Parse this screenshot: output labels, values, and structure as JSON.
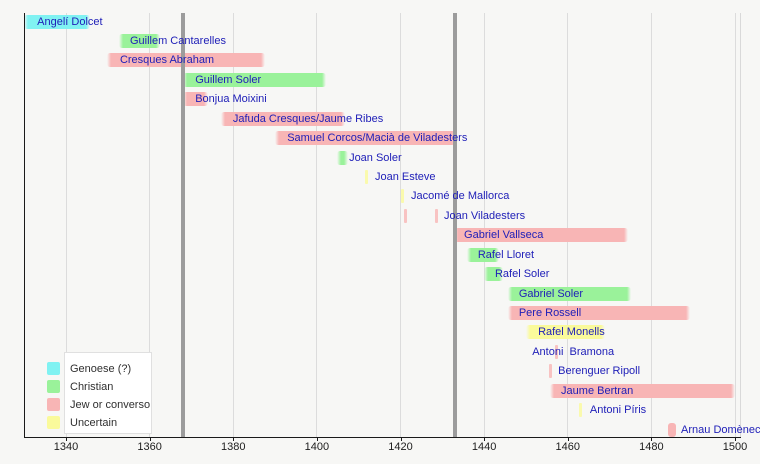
{
  "chart_data": {
    "type": "timeline-gantt",
    "title": "",
    "x_axis": {
      "min": 1330,
      "max": 1501,
      "ticks": [
        1340,
        1360,
        1380,
        1400,
        1420,
        1440,
        1460,
        1480,
        1500
      ]
    },
    "guide_lines": [
      1368,
      1433
    ],
    "colors": {
      "genoese": "#80f2f2",
      "christian": "#9af29a",
      "jew": "#f8b5b5",
      "uncertain": "#fafa9b"
    },
    "legend": [
      {
        "key": "genoese",
        "label": "Genoese (?)"
      },
      {
        "key": "christian",
        "label": "Christian"
      },
      {
        "key": "jew",
        "label": "Jew or converso"
      },
      {
        "key": "uncertain",
        "label": "Uncertain"
      }
    ],
    "rows": [
      {
        "name": "Angelí Dolcet",
        "category": "genoese",
        "start": 1330,
        "end": 1345.7,
        "label_year": 1333.1
      },
      {
        "name": "Guillem Cantarelles",
        "category": "christian",
        "start": 1352.7,
        "end": 1362.5,
        "label_year": 1355.3
      },
      {
        "name": "Cresques Abraham",
        "category": "jew",
        "start": 1349.8,
        "end": 1387.6,
        "label_year": 1352.9
      },
      {
        "name": "Guillem Soler",
        "category": "christian",
        "start": 1368,
        "end": 1402.2,
        "label_year": 1370.9
      },
      {
        "name": "Bonjua Moixini",
        "category": "jew",
        "start": 1368,
        "end": 1374,
        "label_year": 1370.9
      },
      {
        "name": "Jafuda Cresques/Jaume Ribes",
        "category": "jew",
        "start": 1377.1,
        "end": 1406.7,
        "label_year": 1379.9
      },
      {
        "name": "Samuel Corcos/Macià de Viladesters",
        "category": "jew",
        "start": 1390,
        "end": 1433.3,
        "label_year": 1392.9
      },
      {
        "name": "Joan Soler",
        "category": "christian",
        "start": 1404.8,
        "end": 1407.5,
        "label_year": 1407.7
      },
      {
        "name": "Joan Esteve",
        "category": "uncertain",
        "events": [
          1411.8
        ],
        "label_year": 1413.9
      },
      {
        "name": "Jacomé de Mallorca",
        "category": "uncertain",
        "events": [
          1420.4
        ],
        "label_year": 1422.5
      },
      {
        "name": "Joan Viladesters",
        "category": "jew",
        "events": [
          1421.3,
          1428.5
        ],
        "label_year": 1430.4
      },
      {
        "name": "Gabriel Vallseca",
        "category": "jew",
        "start": 1432.8,
        "end": 1474.4,
        "label_year": 1435.2
      },
      {
        "name": "Rafel Lloret",
        "category": "christian",
        "start": 1435.9,
        "end": 1443.6,
        "label_year": 1438.5
      },
      {
        "name": "Rafel Soler",
        "category": "christian",
        "start": 1440,
        "end": 1444.5,
        "label_year": 1442.6
      },
      {
        "name": "Gabriel Soler",
        "category": "christian",
        "start": 1445.7,
        "end": 1475.1,
        "label_year": 1448.3
      },
      {
        "name": "Pere Rossell",
        "category": "jew",
        "start": 1445.7,
        "end": 1489.3,
        "label_year": 1448.3
      },
      {
        "name": "Rafel Monells",
        "category": "uncertain",
        "start": 1450,
        "end": 1468.9,
        "label_year": 1452.9
      },
      {
        "name": "Antoni  Bramona",
        "category": "jew",
        "events": [
          1457.4
        ],
        "label_year": 1451.5
      },
      {
        "name": "Berenguer Ripoll",
        "category": "jew",
        "events": [
          1455.8
        ],
        "label_year": 1457.7
      },
      {
        "name": "Jaume Bertran",
        "category": "jew",
        "start": 1455.8,
        "end": 1500,
        "label_year": 1458.4
      },
      {
        "name": "Antoni Píris",
        "category": "uncertain",
        "events": [
          1463
        ],
        "label_year": 1465.3
      },
      {
        "name": "Arnau Domènech",
        "category": "jew",
        "start": 1484,
        "end": 1485.9,
        "label_year": 1487.1
      }
    ]
  }
}
